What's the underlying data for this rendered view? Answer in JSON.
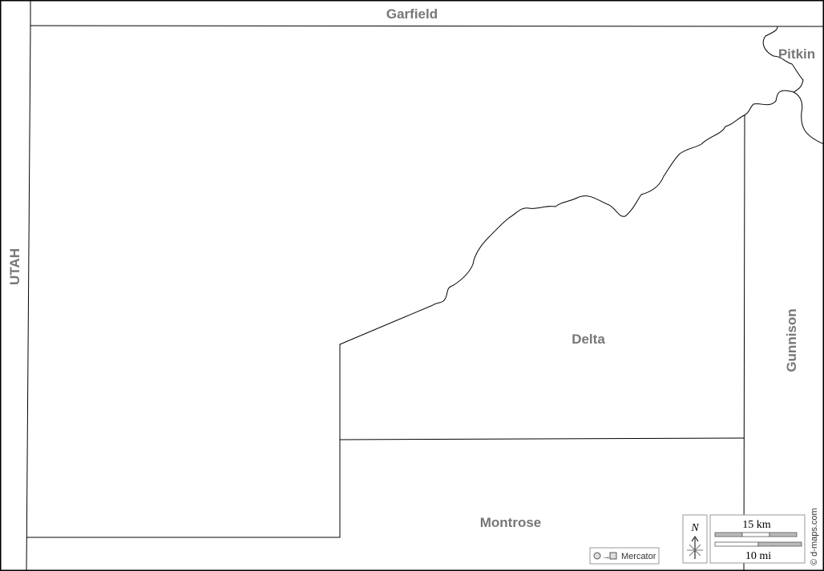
{
  "map": {
    "regions": {
      "top": "Garfield",
      "left": "UTAH",
      "top_right": "Pitkin",
      "center": "Delta",
      "right": "Gunnison",
      "bottom": "Montrose"
    },
    "projection": "Mercator",
    "north_label": "N",
    "scale_km": "15 km",
    "scale_mi": "10 mi",
    "credit": "© d-maps.com",
    "label_color": "#777777"
  }
}
